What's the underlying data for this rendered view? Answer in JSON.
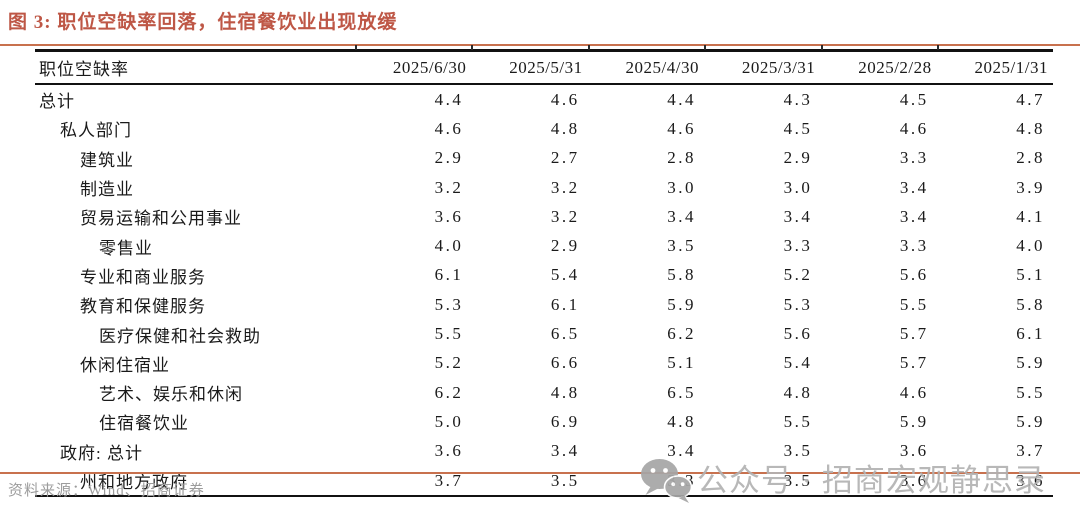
{
  "figure": {
    "title": "图 3: 职位空缺率回落，住宿餐饮业出现放缓"
  },
  "table": {
    "label_header": "职位空缺率",
    "dates": [
      "2025/6/30",
      "2025/5/31",
      "2025/4/30",
      "2025/3/31",
      "2025/2/28",
      "2025/1/31"
    ],
    "rows": [
      {
        "label": "总计",
        "indent": 0,
        "values": [
          "4.4",
          "4.6",
          "4.4",
          "4.3",
          "4.5",
          "4.7"
        ]
      },
      {
        "label": "私人部门",
        "indent": 1,
        "values": [
          "4.6",
          "4.8",
          "4.6",
          "4.5",
          "4.6",
          "4.8"
        ]
      },
      {
        "label": "建筑业",
        "indent": 2,
        "values": [
          "2.9",
          "2.7",
          "2.8",
          "2.9",
          "3.3",
          "2.8"
        ]
      },
      {
        "label": "制造业",
        "indent": 2,
        "values": [
          "3.2",
          "3.2",
          "3.0",
          "3.0",
          "3.4",
          "3.9"
        ]
      },
      {
        "label": "贸易运输和公用事业",
        "indent": 2,
        "values": [
          "3.6",
          "3.2",
          "3.4",
          "3.4",
          "3.4",
          "4.1"
        ]
      },
      {
        "label": "零售业",
        "indent": 3,
        "values": [
          "4.0",
          "2.9",
          "3.5",
          "3.3",
          "3.3",
          "4.0"
        ]
      },
      {
        "label": "专业和商业服务",
        "indent": 2,
        "values": [
          "6.1",
          "5.4",
          "5.8",
          "5.2",
          "5.6",
          "5.1"
        ]
      },
      {
        "label": "教育和保健服务",
        "indent": 2,
        "values": [
          "5.3",
          "6.1",
          "5.9",
          "5.3",
          "5.5",
          "5.8"
        ]
      },
      {
        "label": "医疗保健和社会救助",
        "indent": 3,
        "values": [
          "5.5",
          "6.5",
          "6.2",
          "5.6",
          "5.7",
          "6.1"
        ]
      },
      {
        "label": "休闲住宿业",
        "indent": 2,
        "values": [
          "5.2",
          "6.6",
          "5.1",
          "5.4",
          "5.7",
          "5.9"
        ]
      },
      {
        "label": "艺术、娱乐和休闲",
        "indent": 3,
        "values": [
          "6.2",
          "4.8",
          "6.5",
          "4.8",
          "4.6",
          "5.5"
        ]
      },
      {
        "label": "住宿餐饮业",
        "indent": 3,
        "values": [
          "5.0",
          "6.9",
          "4.8",
          "5.5",
          "5.9",
          "5.9"
        ]
      },
      {
        "label": "政府: 总计",
        "indent": 1,
        "values": [
          "3.6",
          "3.4",
          "3.4",
          "3.5",
          "3.6",
          "3.7"
        ]
      },
      {
        "label": "州和地方政府",
        "indent": 2,
        "values": [
          "3.7",
          "3.5",
          "3.3",
          "3.5",
          "3.6",
          "3.6"
        ]
      }
    ]
  },
  "footer": {
    "source": "资料来源：Wind、招商证券"
  },
  "watermark": {
    "icon": "wechat-icon",
    "text": "公众号 · 招商宏观静思录"
  },
  "colors": {
    "title": "#be5746",
    "rule": "#c8714e",
    "table_border": "#111111",
    "text": "#1a1a1a",
    "footer": "#9c9c9c",
    "watermark": "#b3b3b3"
  },
  "chart_data": {
    "type": "table",
    "title": "图 3: 职位空缺率回落，住宿餐饮业出现放缓",
    "row_header": "职位空缺率",
    "columns": [
      "2025/6/30",
      "2025/5/31",
      "2025/4/30",
      "2025/3/31",
      "2025/2/28",
      "2025/1/31"
    ],
    "rows": [
      {
        "name": "总计",
        "values": [
          4.4,
          4.6,
          4.4,
          4.3,
          4.5,
          4.7
        ]
      },
      {
        "name": "私人部门",
        "values": [
          4.6,
          4.8,
          4.6,
          4.5,
          4.6,
          4.8
        ]
      },
      {
        "name": "建筑业",
        "values": [
          2.9,
          2.7,
          2.8,
          2.9,
          3.3,
          2.8
        ]
      },
      {
        "name": "制造业",
        "values": [
          3.2,
          3.2,
          3.0,
          3.0,
          3.4,
          3.9
        ]
      },
      {
        "name": "贸易运输和公用事业",
        "values": [
          3.6,
          3.2,
          3.4,
          3.4,
          3.4,
          4.1
        ]
      },
      {
        "name": "零售业",
        "values": [
          4.0,
          2.9,
          3.5,
          3.3,
          3.3,
          4.0
        ]
      },
      {
        "name": "专业和商业服务",
        "values": [
          6.1,
          5.4,
          5.8,
          5.2,
          5.6,
          5.1
        ]
      },
      {
        "name": "教育和保健服务",
        "values": [
          5.3,
          6.1,
          5.9,
          5.3,
          5.5,
          5.8
        ]
      },
      {
        "name": "医疗保健和社会救助",
        "values": [
          5.5,
          6.5,
          6.2,
          5.6,
          5.7,
          6.1
        ]
      },
      {
        "name": "休闲住宿业",
        "values": [
          5.2,
          6.6,
          5.1,
          5.4,
          5.7,
          5.9
        ]
      },
      {
        "name": "艺术、娱乐和休闲",
        "values": [
          6.2,
          4.8,
          6.5,
          4.8,
          4.6,
          5.5
        ]
      },
      {
        "name": "住宿餐饮业",
        "values": [
          5.0,
          6.9,
          4.8,
          5.5,
          5.9,
          5.9
        ]
      },
      {
        "name": "政府: 总计",
        "values": [
          3.6,
          3.4,
          3.4,
          3.5,
          3.6,
          3.7
        ]
      },
      {
        "name": "州和地方政府",
        "values": [
          3.7,
          3.5,
          3.3,
          3.5,
          3.6,
          3.6
        ]
      }
    ]
  }
}
